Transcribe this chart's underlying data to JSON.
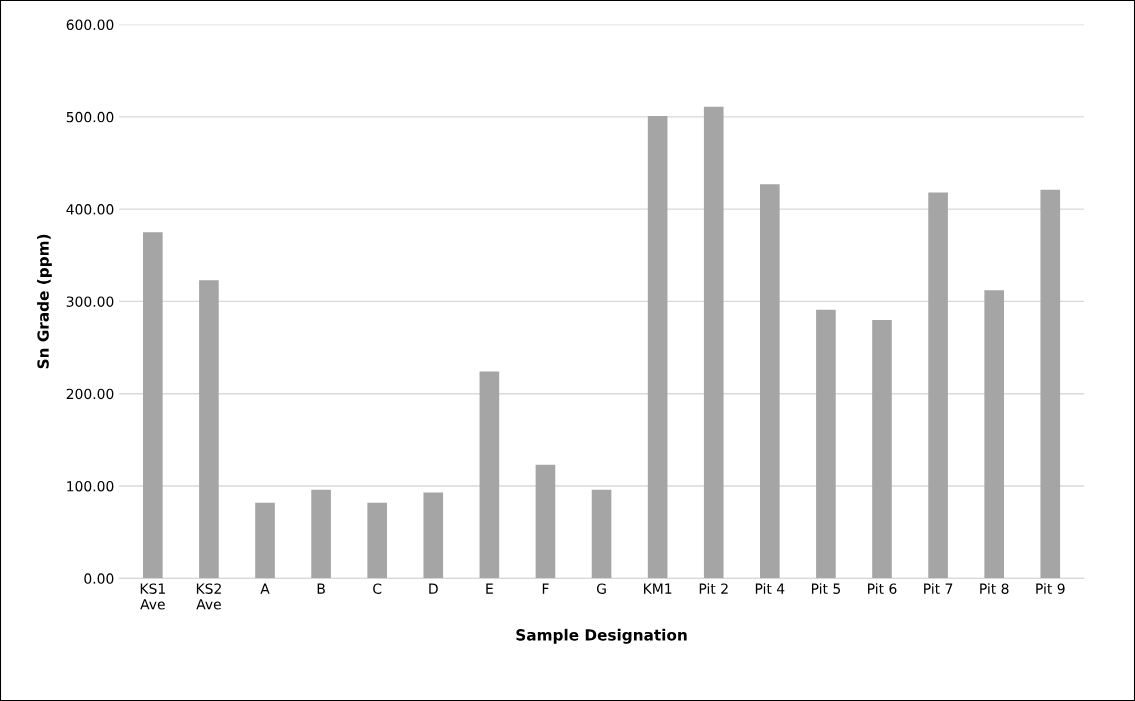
{
  "chart_data": {
    "type": "bar",
    "xlabel": "Sample Designation",
    "ylabel": "Sn Grade (ppm)",
    "categories": [
      "KS1\nAve",
      "KS2\nAve",
      "A",
      "B",
      "C",
      "D",
      "E",
      "F",
      "G",
      "KM1",
      "Pit 2",
      "Pit 4",
      "Pit 5",
      "Pit 6",
      "Pit 7",
      "Pit 8",
      "Pit 9"
    ],
    "values": [
      375,
      323,
      82,
      96,
      82,
      93,
      224,
      123,
      96,
      501,
      511,
      427,
      291,
      280,
      418,
      312,
      421
    ],
    "color": "#a5a5a5",
    "ylim": [
      0,
      600
    ],
    "yticks": [
      {
        "value": 0,
        "label": "0.00"
      },
      {
        "value": 100,
        "label": "100.00"
      },
      {
        "value": 200,
        "label": "200.00"
      },
      {
        "value": 300,
        "label": "300.00"
      },
      {
        "value": 400,
        "label": "400.00"
      },
      {
        "value": 500,
        "label": "500.00"
      },
      {
        "value": 600,
        "label": "600.00"
      }
    ],
    "grid": "y"
  }
}
